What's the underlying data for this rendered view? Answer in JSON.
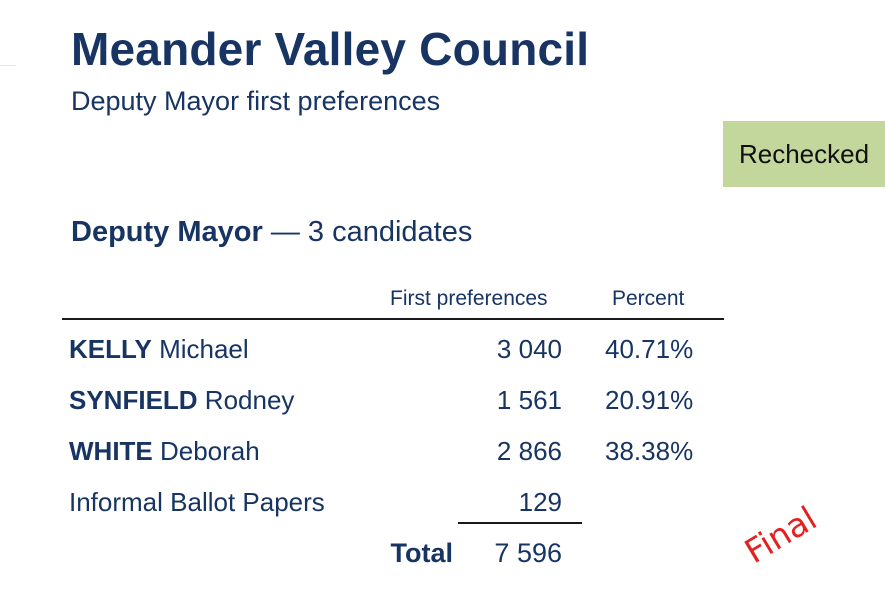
{
  "header": {
    "title": "Meander Valley Council",
    "subtitle": "Deputy Mayor first preferences"
  },
  "status": {
    "label": "Rechecked",
    "color": "#c3d69b"
  },
  "section": {
    "heading_bold": "Deputy Mayor",
    "heading_rest": " — 3 candidates"
  },
  "table": {
    "columns": [
      "First preferences",
      "Percent"
    ],
    "candidates": [
      {
        "surname": "KELLY",
        "given": " Michael",
        "first_preferences": "3 040",
        "percent": "40.71%"
      },
      {
        "surname": "SYNFIELD",
        "given": " Rodney",
        "first_preferences": "1 561",
        "percent": "20.91%"
      },
      {
        "surname": "WHITE",
        "given": " Deborah",
        "first_preferences": "2 866",
        "percent": "38.38%"
      }
    ],
    "informal": {
      "label": "Informal Ballot Papers",
      "first_preferences": "129"
    },
    "total": {
      "label": "Total",
      "value": "7 596"
    }
  },
  "stamp": {
    "text": "Final",
    "color": "#e52020"
  }
}
